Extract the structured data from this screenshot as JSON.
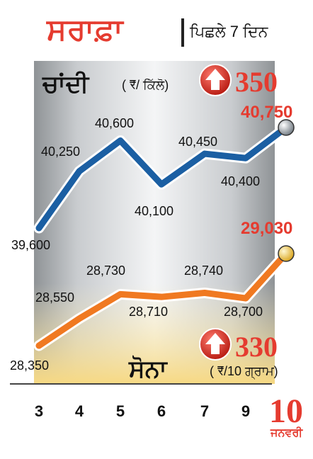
{
  "header": {
    "title": "ਸਰਾਫ਼ਾ",
    "subtitle": "ਪਿਛਲੇ 7 ਦਿਨ"
  },
  "silver": {
    "title": "ਚਾਂਦੀ",
    "unit": "( ₹/ ਕਿੱਲੋ)",
    "change": "350",
    "change_direction": "up"
  },
  "gold": {
    "title": "ਸੋਨਾ",
    "unit": "( ₹/10 ਗ੍ਰਾਮ)",
    "change": "330",
    "change_direction": "up"
  },
  "date_word": "ਜਨਵਰੀ",
  "colors": {
    "silver_line": "#1b5fa3",
    "gold_line": "#f07921",
    "accent": "#e53b2f"
  },
  "chart_data": {
    "type": "line",
    "x": [
      "3",
      "4",
      "5",
      "6",
      "7",
      "9",
      "10"
    ],
    "series": [
      {
        "values": [
          39600,
          40250,
          40600,
          40100,
          40450,
          40400,
          40750
        ]
      },
      {
        "values": [
          28350,
          28550,
          28730,
          28710,
          28740,
          28700,
          29030
        ]
      }
    ],
    "data_labels": [
      [
        "39,600",
        "40,250",
        "40,600",
        "40,100",
        "40,450",
        "40,400",
        "40,750"
      ],
      [
        "28,350",
        "28,550",
        "28,730",
        "28,710",
        "28,740",
        "28,700",
        "29,030"
      ]
    ],
    "legend": "none",
    "grid": false
  }
}
